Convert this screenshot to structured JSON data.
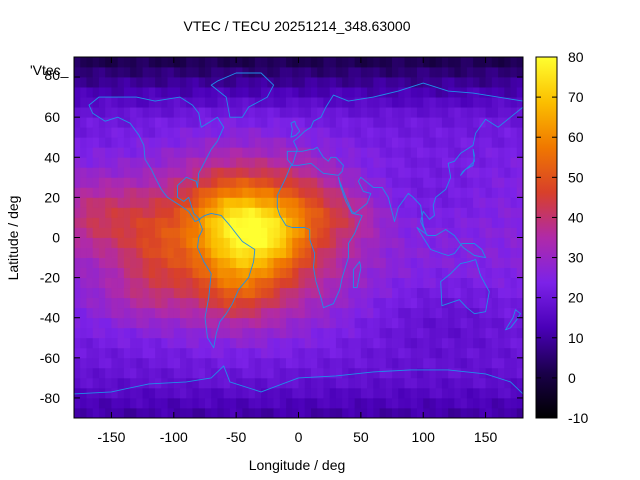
{
  "chart_data": {
    "type": "heatmap",
    "title": "VTEC / TECU 20251214_348.63000",
    "xlabel": "Longitude / deg",
    "ylabel": "Latitude / deg",
    "xlim": [
      -180,
      180
    ],
    "ylim": [
      -90,
      90
    ],
    "x_ticks": [
      -150,
      -100,
      -50,
      0,
      50,
      100,
      150
    ],
    "y_ticks": [
      60,
      40,
      20,
      0,
      -20,
      -40,
      -60,
      -80
    ],
    "y_top_tick_label": "80",
    "colorbar": {
      "range": [
        -10,
        80
      ],
      "ticks": [
        80,
        70,
        60,
        50,
        40,
        30,
        20,
        10,
        0,
        -10
      ],
      "palette": [
        "#000000",
        "#1a004a",
        "#4a00b8",
        "#7c22e8",
        "#b02aa8",
        "#d8402a",
        "#f07800",
        "#fbbf00",
        "#ffff30"
      ]
    },
    "legend_key": "'Vtec_",
    "grid": false,
    "coastline_color": "#1f8fe8",
    "blobs": [
      {
        "lon": -160,
        "lat": 10,
        "sx": 40,
        "sy": 20,
        "amp": 14
      },
      {
        "lon": -115,
        "lat": -5,
        "sx": 30,
        "sy": 25,
        "amp": 10
      },
      {
        "lon": -60,
        "lat": 10,
        "sx": 35,
        "sy": 22,
        "amp": 12
      },
      {
        "lon": -45,
        "lat": 5,
        "sx": 28,
        "sy": 18,
        "amp": 12
      },
      {
        "lon": -20,
        "lat": 0,
        "sx": 25,
        "sy": 15,
        "amp": 12
      },
      {
        "lon": 0,
        "lat": 15,
        "sx": 35,
        "sy": 18,
        "amp": 8
      },
      {
        "lon": 40,
        "lat": 10,
        "sx": 30,
        "sy": 12,
        "amp": 6
      },
      {
        "lon": -50,
        "lat": -25,
        "sx": 30,
        "sy": 18,
        "amp": 10
      },
      {
        "lon": -130,
        "lat": -30,
        "sx": 40,
        "sy": 15,
        "amp": 6
      },
      {
        "lon": 100,
        "lat": 20,
        "sx": 50,
        "sy": 20,
        "amp": -4
      },
      {
        "lon": 120,
        "lat": -40,
        "sx": 60,
        "sy": 20,
        "amp": -5
      }
    ]
  }
}
